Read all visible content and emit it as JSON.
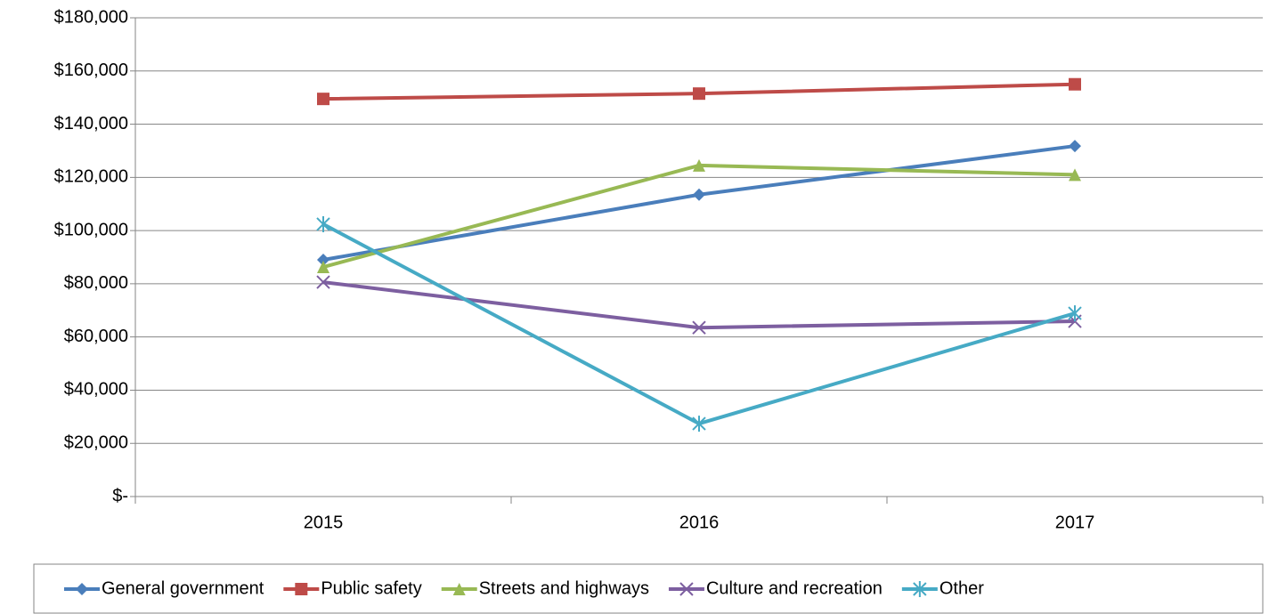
{
  "chart_data": {
    "type": "line",
    "categories": [
      "2015",
      "2016",
      "2017"
    ],
    "series": [
      {
        "name": "General government",
        "color": "#4a7ebb",
        "marker": "diamond",
        "values": [
          89000,
          113500,
          131800
        ]
      },
      {
        "name": "Public safety",
        "color": "#be4b48",
        "marker": "square",
        "values": [
          149500,
          151500,
          155000
        ]
      },
      {
        "name": "Streets and highways",
        "color": "#98b954",
        "marker": "triangle",
        "values": [
          86300,
          124500,
          121000
        ]
      },
      {
        "name": "Culture and recreation",
        "color": "#7d5fa0",
        "marker": "x",
        "values": [
          80600,
          63500,
          65900
        ]
      },
      {
        "name": "Other",
        "color": "#46aac5",
        "marker": "asterisk",
        "values": [
          102400,
          27400,
          68900
        ]
      }
    ],
    "ylim": [
      0,
      180000
    ],
    "yticks": [
      {
        "value": 0,
        "label": "$-"
      },
      {
        "value": 20000,
        "label": "$20,000"
      },
      {
        "value": 40000,
        "label": "$40,000"
      },
      {
        "value": 60000,
        "label": "$60,000"
      },
      {
        "value": 80000,
        "label": "$80,000"
      },
      {
        "value": 100000,
        "label": "$100,000"
      },
      {
        "value": 120000,
        "label": "$120,000"
      },
      {
        "value": 140000,
        "label": "$140,000"
      },
      {
        "value": 160000,
        "label": "$160,000"
      },
      {
        "value": 180000,
        "label": "$180,000"
      }
    ],
    "grid": true,
    "legend": "bottom"
  }
}
